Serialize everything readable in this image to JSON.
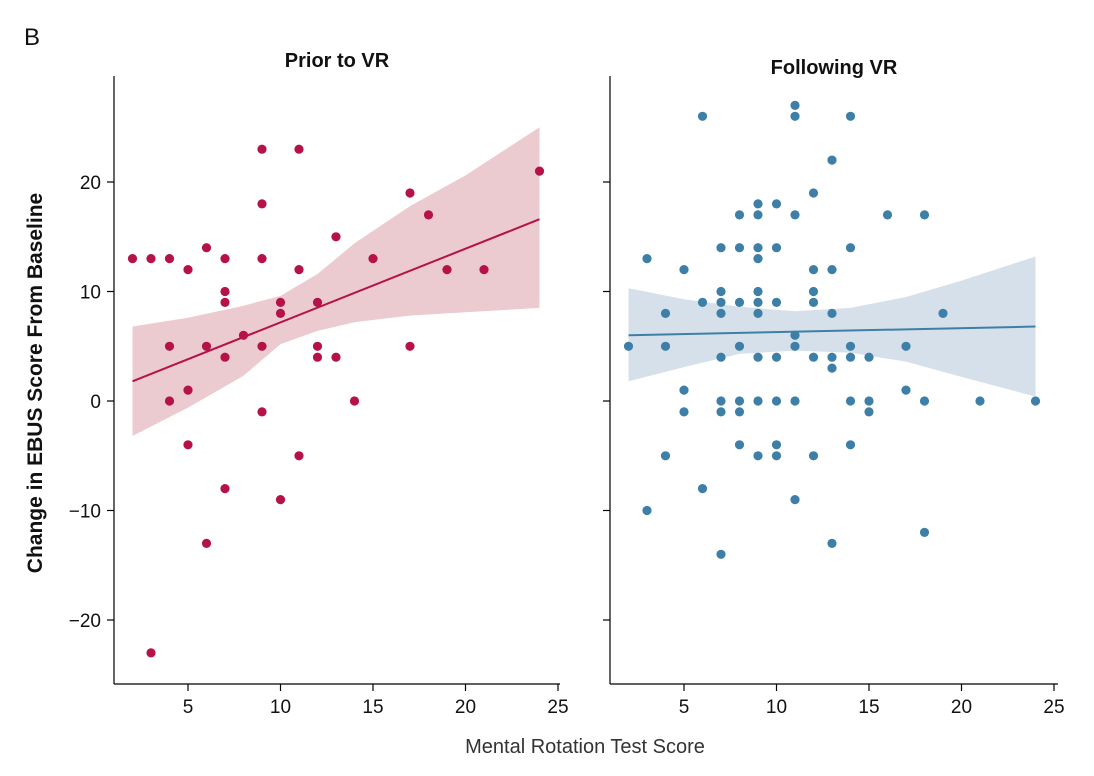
{
  "figure": {
    "panel_letter": "B",
    "xlabel": "Mental Rotation Test Score",
    "ylabel": "Change in EBUS Score From Baseline"
  },
  "chart_data": [
    {
      "type": "scatter",
      "title": "Prior to VR",
      "xlabel": "Mental Rotation Test Score",
      "ylabel": "Change in EBUS Score From Baseline",
      "xlim": [
        1,
        25
      ],
      "ylim": [
        -26,
        29
      ],
      "xticks": [
        5,
        10,
        15,
        20,
        25
      ],
      "yticks": [
        -20,
        -10,
        0,
        10,
        20
      ],
      "grid": false,
      "color": "#b5124a",
      "band_color": "#e8c2c8",
      "points": [
        [
          2,
          13
        ],
        [
          3,
          13
        ],
        [
          3,
          -23
        ],
        [
          4,
          13
        ],
        [
          4,
          5
        ],
        [
          4,
          0
        ],
        [
          5,
          12
        ],
        [
          5,
          1
        ],
        [
          5,
          -4
        ],
        [
          6,
          14
        ],
        [
          6,
          5
        ],
        [
          6,
          -13
        ],
        [
          7,
          13
        ],
        [
          7,
          10
        ],
        [
          7,
          9
        ],
        [
          7,
          4
        ],
        [
          7,
          -8
        ],
        [
          8,
          6
        ],
        [
          9,
          23
        ],
        [
          9,
          18
        ],
        [
          9,
          13
        ],
        [
          9,
          5
        ],
        [
          9,
          -1
        ],
        [
          10,
          9
        ],
        [
          10,
          8
        ],
        [
          10,
          -9
        ],
        [
          11,
          23
        ],
        [
          11,
          12
        ],
        [
          11,
          -5
        ],
        [
          12,
          9
        ],
        [
          12,
          5
        ],
        [
          12,
          4
        ],
        [
          13,
          15
        ],
        [
          13,
          4
        ],
        [
          14,
          0
        ],
        [
          15,
          13
        ],
        [
          17,
          19
        ],
        [
          17,
          5
        ],
        [
          18,
          17
        ],
        [
          19,
          12
        ],
        [
          21,
          12
        ],
        [
          24,
          21
        ]
      ],
      "fit": {
        "x": [
          2,
          24
        ],
        "y": [
          1.8,
          16.6
        ]
      },
      "ci_band": {
        "x": [
          2,
          5,
          8,
          10,
          12,
          14,
          17,
          20,
          24
        ],
        "upper": [
          6.8,
          7.6,
          8.7,
          9.6,
          11.6,
          14.4,
          17.8,
          20.6,
          25.0
        ],
        "lower": [
          -3.2,
          -0.6,
          2.3,
          5.2,
          6.4,
          7.2,
          7.8,
          8.1,
          8.5
        ]
      }
    },
    {
      "type": "scatter",
      "title": "Following VR",
      "xlabel": "Mental Rotation Test Score",
      "ylabel": "",
      "xlim": [
        1,
        25
      ],
      "ylim": [
        -26,
        29
      ],
      "xticks": [
        5,
        10,
        15,
        20,
        25
      ],
      "yticks": [
        -20,
        -10,
        0,
        10,
        20
      ],
      "grid": false,
      "color": "#3d7fa6",
      "band_color": "#cfdae6",
      "points": [
        [
          2,
          5
        ],
        [
          3,
          13
        ],
        [
          3,
          -10
        ],
        [
          4,
          8
        ],
        [
          4,
          5
        ],
        [
          4,
          -5
        ],
        [
          5,
          12
        ],
        [
          5,
          1
        ],
        [
          5,
          -1
        ],
        [
          6,
          26
        ],
        [
          6,
          9
        ],
        [
          6,
          -8
        ],
        [
          7,
          14
        ],
        [
          7,
          10
        ],
        [
          7,
          9
        ],
        [
          7,
          8
        ],
        [
          7,
          4
        ],
        [
          7,
          0
        ],
        [
          7,
          -1
        ],
        [
          7,
          -14
        ],
        [
          8,
          17
        ],
        [
          8,
          14
        ],
        [
          8,
          9
        ],
        [
          8,
          5
        ],
        [
          8,
          0
        ],
        [
          8,
          -1
        ],
        [
          8,
          -4
        ],
        [
          9,
          18
        ],
        [
          9,
          17
        ],
        [
          9,
          14
        ],
        [
          9,
          13
        ],
        [
          9,
          10
        ],
        [
          9,
          9
        ],
        [
          9,
          8
        ],
        [
          9,
          4
        ],
        [
          9,
          0
        ],
        [
          9,
          -5
        ],
        [
          10,
          18
        ],
        [
          10,
          14
        ],
        [
          10,
          9
        ],
        [
          10,
          4
        ],
        [
          10,
          0
        ],
        [
          10,
          -4
        ],
        [
          10,
          -5
        ],
        [
          11,
          27
        ],
        [
          11,
          26
        ],
        [
          11,
          17
        ],
        [
          11,
          6
        ],
        [
          11,
          5
        ],
        [
          11,
          0
        ],
        [
          11,
          -9
        ],
        [
          12,
          19
        ],
        [
          12,
          12
        ],
        [
          12,
          10
        ],
        [
          12,
          9
        ],
        [
          12,
          4
        ],
        [
          12,
          -5
        ],
        [
          13,
          22
        ],
        [
          13,
          12
        ],
        [
          13,
          8
        ],
        [
          13,
          4
        ],
        [
          13,
          3
        ],
        [
          13,
          -13
        ],
        [
          14,
          26
        ],
        [
          14,
          14
        ],
        [
          14,
          5
        ],
        [
          14,
          4
        ],
        [
          14,
          0
        ],
        [
          14,
          -4
        ],
        [
          15,
          4
        ],
        [
          15,
          0
        ],
        [
          15,
          -1
        ],
        [
          16,
          17
        ],
        [
          17,
          5
        ],
        [
          17,
          1
        ],
        [
          18,
          17
        ],
        [
          18,
          0
        ],
        [
          18,
          -12
        ],
        [
          19,
          8
        ],
        [
          21,
          0
        ],
        [
          24,
          0
        ]
      ],
      "fit": {
        "x": [
          2,
          24
        ],
        "y": [
          6.0,
          6.8
        ]
      },
      "ci_band": {
        "x": [
          2,
          5,
          8,
          11,
          14,
          17,
          20,
          24
        ],
        "upper": [
          10.3,
          9.3,
          8.6,
          8.2,
          8.5,
          9.5,
          11.0,
          13.2
        ],
        "lower": [
          1.8,
          3.1,
          4.3,
          4.6,
          4.4,
          3.6,
          2.2,
          0.4
        ]
      }
    }
  ]
}
